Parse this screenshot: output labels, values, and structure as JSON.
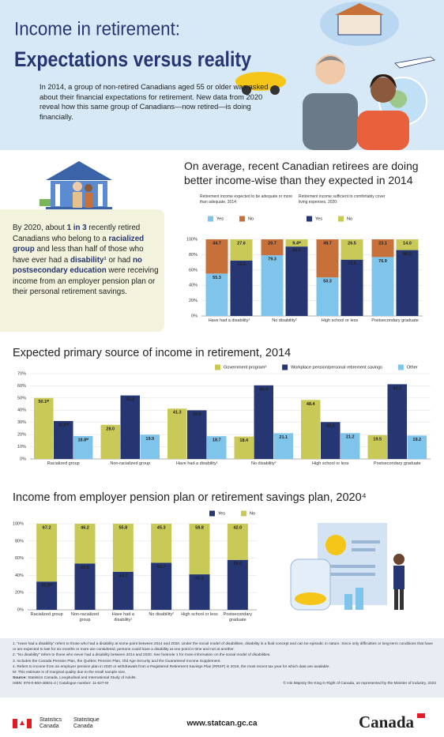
{
  "header": {
    "title_line1": "Income in retirement:",
    "title_line2": "Expectations versus reality",
    "intro": "In 2014, a group of non-retired Canadians aged 55 or older was asked about their financial expectations for retirement. New data from 2020 reveal how this same group of Canadians—now retired—is doing financially."
  },
  "callout": {
    "segments": [
      {
        "text": "By 2020, about "
      },
      {
        "text": "1 in 3",
        "bold": true
      },
      {
        "text": " recently retired Canadians who belong to a "
      },
      {
        "text": "racialized group",
        "bold": true
      },
      {
        "text": " and less than half of those who have ever had a "
      },
      {
        "text": "disability¹",
        "bold": true
      },
      {
        "text": " or had "
      },
      {
        "text": "no postsecondary education",
        "bold": true
      },
      {
        "text": " were receiving income from an employer pension plan or their personal retirement savings."
      }
    ]
  },
  "chart_data": [
    {
      "type": "grouped-stacked-bar",
      "title": "On average, recent Canadian retirees are doing better income-wise than they expected in 2014",
      "categories": [
        "Have had a disability¹",
        "No disability²",
        "High school or less",
        "Postsecondary graduate"
      ],
      "groups": [
        {
          "legend_title": "Retirement income expected to be adequate or more than adequate, 2014:",
          "series": [
            {
              "name": "Yes",
              "color": "#7fc4ea",
              "values": [
                55.3,
                79.3,
                50.3,
                76.9
              ],
              "value_labels": [
                "55.3",
                "79.3",
                "50.3",
                "76.9"
              ]
            },
            {
              "name": "No",
              "color": "#c7703a",
              "values": [
                44.7,
                20.7,
                49.7,
                23.1
              ],
              "value_labels": [
                "44.7",
                "20.7",
                "49.7",
                "23.1"
              ]
            }
          ]
        },
        {
          "legend_title": "Retirement income sufficient to comfortably cover living expenses, 2020:",
          "series": [
            {
              "name": "Yes",
              "color": "#253673",
              "values": [
                72.4,
                90.6,
                73.5,
                86.0
              ],
              "value_labels": [
                "72.4",
                "90.6",
                "73.5",
                "86.0"
              ]
            },
            {
              "name": "No",
              "color": "#c9c957",
              "values": [
                27.6,
                9.4,
                26.5,
                14.0
              ],
              "value_labels": [
                "27.6",
                "9.4ᴹ",
                "26.5",
                "14.0"
              ]
            }
          ]
        }
      ],
      "ylim": [
        0,
        100
      ],
      "yticks": [
        {
          "value": 0,
          "label": "0%"
        },
        {
          "value": 20,
          "label": "20%"
        },
        {
          "value": 40,
          "label": "40%"
        },
        {
          "value": 60,
          "label": "60%"
        },
        {
          "value": 80,
          "label": "80%"
        },
        {
          "value": 100,
          "label": "100%"
        }
      ],
      "grid": true
    },
    {
      "type": "bar",
      "title": "Expected primary source of income in retirement, 2014",
      "categories": [
        "Racialized group",
        "Non-racialized group",
        "Have had a disability¹",
        "No disability²",
        "High school or less",
        "Postsecondary graduate"
      ],
      "series": [
        {
          "name": "Government program³",
          "color": "#c9c957",
          "values": [
            50.1,
            28.0,
            41.3,
            18.4,
            48.4,
            19.5
          ],
          "value_labels": [
            "50.1ᴹ",
            "28.0",
            "41.3",
            "18.4",
            "48.4",
            "19.5"
          ]
        },
        {
          "name": "Workplace pension/personal retirement savings",
          "color": "#253673",
          "values": [
            31.1,
            52.1,
            39.9,
            60.4,
            30.3,
            61.3
          ],
          "value_labels": [
            "31.1ᴹ",
            "52.1",
            "39.9",
            "60.4",
            "30.3",
            "61.3"
          ]
        },
        {
          "name": "Other",
          "color": "#7fc4ea",
          "values": [
            18.8,
            19.9,
            18.7,
            21.1,
            21.2,
            19.2
          ],
          "value_labels": [
            "18.8ᴹ",
            "19.9",
            "18.7",
            "21.1",
            "21.2",
            "19.2"
          ]
        }
      ],
      "ylim": [
        0,
        70
      ],
      "yticks": [
        {
          "value": 0,
          "label": "0%"
        },
        {
          "value": 10,
          "label": "10%"
        },
        {
          "value": 20,
          "label": "20%"
        },
        {
          "value": 30,
          "label": "30%"
        },
        {
          "value": 40,
          "label": "40%"
        },
        {
          "value": 50,
          "label": "50%"
        },
        {
          "value": 60,
          "label": "60%"
        },
        {
          "value": 70,
          "label": "70%"
        }
      ],
      "grid": true
    },
    {
      "type": "stacked-bar",
      "title": "Income from employer pension plan or retirement savings plan, 2020⁴",
      "categories": [
        "Racialized group",
        "Non-racialized group",
        "Have had a disability¹",
        "No disability²",
        "High school or less",
        "Postsecondary graduate"
      ],
      "series": [
        {
          "name": "Yes",
          "color": "#253673",
          "values": [
            32.8,
            53.8,
            44.2,
            54.7,
            41.2,
            58.0
          ],
          "value_labels": [
            "32.8ᴹ",
            "53.8",
            "44.2",
            "54.7",
            "41.2",
            "58.0"
          ]
        },
        {
          "name": "No",
          "color": "#c9c957",
          "values": [
            67.2,
            46.2,
            55.8,
            45.3,
            58.8,
            42.0
          ],
          "value_labels": [
            "67.2",
            "46.2",
            "55.8",
            "45.3",
            "58.8",
            "42.0"
          ]
        }
      ],
      "ylim": [
        0,
        100
      ],
      "yticks": [
        {
          "value": 0,
          "label": "0%"
        },
        {
          "value": 20,
          "label": "20%"
        },
        {
          "value": 40,
          "label": "40%"
        },
        {
          "value": 60,
          "label": "60%"
        },
        {
          "value": 80,
          "label": "80%"
        },
        {
          "value": 100,
          "label": "100%"
        }
      ],
      "grid": true
    }
  ],
  "footnotes": {
    "notes": [
      "1. “Have had a disability” refers to those who had a disability at some point between 2014 and 2020. Under the social model of disabilities, disability is a fluid concept and can be episodic in nature. Since only difficulties or long-term conditions that have or are expected to last for six months or more are considered, persons could have a disability at one point in time and not at another.",
      "2. “No disability” refers to those who never had a disability between 2014 and 2020. See footnote 1 for more information on the social model of disabilities.",
      "3. Includes the Canada Pension Plan, the Québec Pension Plan, Old Age Security and the Guaranteed Income Supplement.",
      "4. Refers to income from an employer pension plan in 2020 or withdrawals from a Registered Retirement Savings Plan (RRSP) in 2019, the most recent tax year for which data are available."
    ],
    "marginal": "M: This estimate is of marginal quality due to the small sample size.",
    "source_label": "Source:",
    "source": "Statistics Canada, Longitudinal and International Study of Adults.",
    "isbn": "ISBN: 978-0-660-46501-2 | Catalogue number: 11-627-M",
    "copyright": "© His Majesty the King in Right of Canada, as represented by the Minister of Industry, 2022"
  },
  "footer": {
    "agency_en": "Statistics Canada",
    "agency_fr": "Statistique Canada",
    "url": "www.statcan.gc.ca",
    "wordmark": "Canada"
  }
}
